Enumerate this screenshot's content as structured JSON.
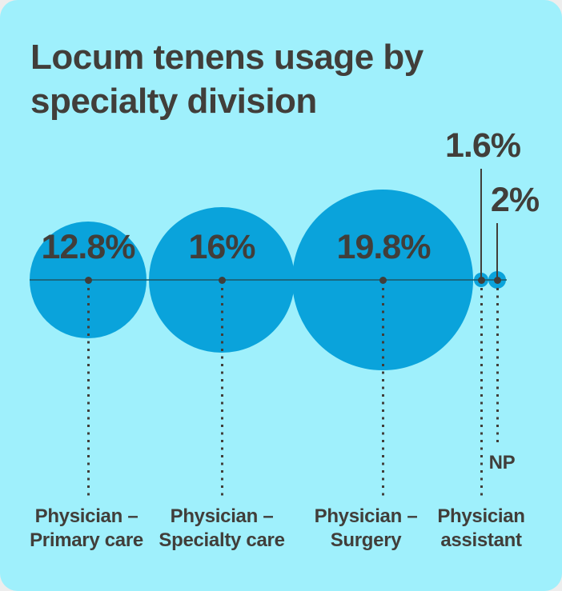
{
  "header": {
    "title_lines": [
      "Locum tenens usage by",
      "specialty division"
    ]
  },
  "chart_data": {
    "type": "bubble",
    "title": "Locum tenens usage by specialty division",
    "categories": [
      "Physician – Primary care",
      "Physician – Specialty care",
      "Physician – Surgery",
      "Physician assistant",
      "NP"
    ],
    "category_lines": [
      [
        "Physician –",
        "Primary care"
      ],
      [
        "Physician –",
        "Specialty care"
      ],
      [
        "Physician –",
        "Surgery"
      ],
      [
        "Physician",
        "assistant"
      ],
      [
        "NP"
      ]
    ],
    "values": [
      12.8,
      16,
      19.8,
      1.6,
      2
    ],
    "value_labels": [
      "12.8%",
      "16%",
      "19.8%",
      "1.6%",
      "2%"
    ],
    "unit": "percent",
    "legend": "none",
    "layout_hints": {
      "bubbles_aligned_on_horizontal_baseline": true,
      "bubble_area_proportionality": "radius proportional to value",
      "small_bubble_values_called_out_above_with_leader_lines": [
        "1.6%",
        "2%"
      ]
    },
    "colors": {
      "background": "#9ff0fc",
      "bubble": "#0aa3db",
      "text": "#413e3a",
      "axis_line": "#1d5a6b"
    }
  }
}
